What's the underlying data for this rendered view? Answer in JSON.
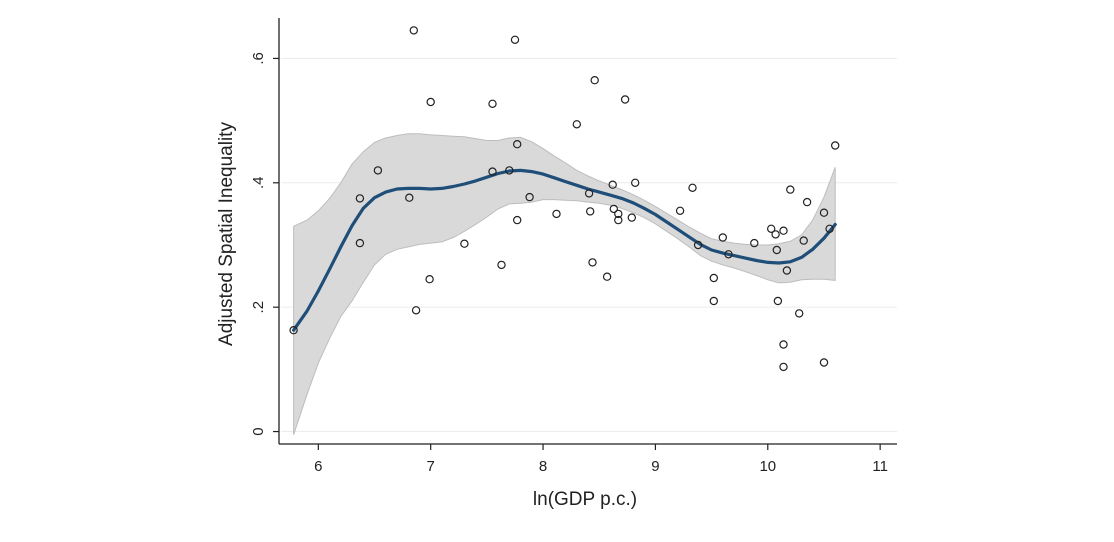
{
  "chart_data": {
    "type": "scatter",
    "title": "",
    "xlabel": "ln(GDP p.c.)",
    "ylabel": "Adjusted Spatial Inequality",
    "xlim": [
      5.65,
      11.15
    ],
    "ylim": [
      -0.02,
      0.665
    ],
    "x_ticks": [
      6,
      7,
      8,
      9,
      10,
      11
    ],
    "x_tick_labels": [
      "6",
      "7",
      "8",
      "9",
      "10",
      "11"
    ],
    "y_ticks": [
      0,
      0.2,
      0.4,
      0.6
    ],
    "y_tick_labels": [
      "0",
      ".2",
      ".4",
      ".6"
    ],
    "grid": "horizontal",
    "colors": {
      "fit_line": "#1f4e79",
      "confidence_band": "#d9d9d9",
      "band_edge": "#bdbdbd",
      "markers": "#222222",
      "grid": "#ececec",
      "axis": "#222222"
    },
    "series": [
      {
        "kind": "scatter",
        "points": [
          [
            5.78,
            0.163
          ],
          [
            6.37,
            0.375
          ],
          [
            6.37,
            0.303
          ],
          [
            6.53,
            0.42
          ],
          [
            6.81,
            0.376
          ],
          [
            6.85,
            0.645
          ],
          [
            6.87,
            0.195
          ],
          [
            6.99,
            0.245
          ],
          [
            7.0,
            0.53
          ],
          [
            7.3,
            0.302
          ],
          [
            7.55,
            0.527
          ],
          [
            7.55,
            0.418
          ],
          [
            7.63,
            0.268
          ],
          [
            7.7,
            0.42
          ],
          [
            7.75,
            0.63
          ],
          [
            7.77,
            0.462
          ],
          [
            7.77,
            0.34
          ],
          [
            7.88,
            0.377
          ],
          [
            8.12,
            0.35
          ],
          [
            8.3,
            0.494
          ],
          [
            8.41,
            0.383
          ],
          [
            8.42,
            0.354
          ],
          [
            8.44,
            0.272
          ],
          [
            8.46,
            0.565
          ],
          [
            8.57,
            0.249
          ],
          [
            8.62,
            0.397
          ],
          [
            8.63,
            0.358
          ],
          [
            8.67,
            0.35
          ],
          [
            8.67,
            0.34
          ],
          [
            8.73,
            0.534
          ],
          [
            8.79,
            0.344
          ],
          [
            8.82,
            0.4
          ],
          [
            9.22,
            0.355
          ],
          [
            9.33,
            0.392
          ],
          [
            9.38,
            0.3
          ],
          [
            9.52,
            0.247
          ],
          [
            9.52,
            0.21
          ],
          [
            9.6,
            0.312
          ],
          [
            9.65,
            0.285
          ],
          [
            9.88,
            0.303
          ],
          [
            10.03,
            0.326
          ],
          [
            10.07,
            0.317
          ],
          [
            10.08,
            0.292
          ],
          [
            10.09,
            0.21
          ],
          [
            10.14,
            0.323
          ],
          [
            10.14,
            0.14
          ],
          [
            10.14,
            0.104
          ],
          [
            10.17,
            0.259
          ],
          [
            10.2,
            0.389
          ],
          [
            10.28,
            0.19
          ],
          [
            10.32,
            0.307
          ],
          [
            10.35,
            0.369
          ],
          [
            10.5,
            0.352
          ],
          [
            10.5,
            0.111
          ],
          [
            10.55,
            0.326
          ],
          [
            10.6,
            0.46
          ]
        ]
      },
      {
        "kind": "fit_line",
        "x": [
          5.78,
          5.9,
          6.0,
          6.1,
          6.2,
          6.3,
          6.4,
          6.5,
          6.6,
          6.7,
          6.8,
          6.9,
          7.0,
          7.1,
          7.2,
          7.3,
          7.4,
          7.5,
          7.6,
          7.7,
          7.8,
          7.9,
          8.0,
          8.1,
          8.2,
          8.3,
          8.4,
          8.5,
          8.6,
          8.7,
          8.8,
          8.9,
          9.0,
          9.1,
          9.2,
          9.3,
          9.4,
          9.5,
          9.6,
          9.7,
          9.8,
          9.9,
          10.0,
          10.1,
          10.2,
          10.3,
          10.4,
          10.5,
          10.6
        ],
        "y": [
          0.163,
          0.194,
          0.226,
          0.261,
          0.297,
          0.331,
          0.359,
          0.376,
          0.385,
          0.39,
          0.391,
          0.391,
          0.39,
          0.391,
          0.394,
          0.398,
          0.403,
          0.409,
          0.415,
          0.419,
          0.42,
          0.418,
          0.414,
          0.408,
          0.402,
          0.396,
          0.39,
          0.385,
          0.38,
          0.375,
          0.368,
          0.359,
          0.349,
          0.337,
          0.325,
          0.313,
          0.301,
          0.292,
          0.287,
          0.283,
          0.279,
          0.275,
          0.272,
          0.271,
          0.273,
          0.28,
          0.293,
          0.311,
          0.333
        ]
      },
      {
        "kind": "confidence_band",
        "x": [
          5.78,
          5.9,
          6.0,
          6.1,
          6.2,
          6.3,
          6.4,
          6.5,
          6.6,
          6.7,
          6.8,
          6.9,
          7.0,
          7.1,
          7.2,
          7.3,
          7.4,
          7.5,
          7.6,
          7.7,
          7.8,
          7.9,
          8.0,
          8.1,
          8.2,
          8.3,
          8.4,
          8.5,
          8.6,
          8.7,
          8.8,
          8.9,
          9.0,
          9.1,
          9.2,
          9.3,
          9.4,
          9.5,
          9.6,
          9.7,
          9.8,
          9.9,
          10.0,
          10.1,
          10.2,
          10.3,
          10.4,
          10.5,
          10.6
        ],
        "upper": [
          0.33,
          0.34,
          0.355,
          0.375,
          0.4,
          0.43,
          0.45,
          0.465,
          0.472,
          0.476,
          0.479,
          0.479,
          0.477,
          0.476,
          0.475,
          0.474,
          0.471,
          0.468,
          0.468,
          0.472,
          0.473,
          0.466,
          0.455,
          0.443,
          0.432,
          0.42,
          0.411,
          0.403,
          0.396,
          0.389,
          0.381,
          0.372,
          0.362,
          0.351,
          0.34,
          0.329,
          0.319,
          0.31,
          0.306,
          0.303,
          0.301,
          0.3,
          0.3,
          0.302,
          0.306,
          0.316,
          0.34,
          0.377,
          0.425
        ],
        "lower": [
          -0.005,
          0.06,
          0.11,
          0.15,
          0.185,
          0.21,
          0.24,
          0.268,
          0.285,
          0.293,
          0.297,
          0.301,
          0.303,
          0.305,
          0.312,
          0.322,
          0.333,
          0.345,
          0.358,
          0.366,
          0.367,
          0.369,
          0.373,
          0.373,
          0.372,
          0.371,
          0.369,
          0.367,
          0.364,
          0.359,
          0.352,
          0.344,
          0.334,
          0.322,
          0.31,
          0.297,
          0.283,
          0.274,
          0.268,
          0.263,
          0.257,
          0.251,
          0.244,
          0.239,
          0.24,
          0.244,
          0.245,
          0.245,
          0.243
        ]
      }
    ]
  }
}
